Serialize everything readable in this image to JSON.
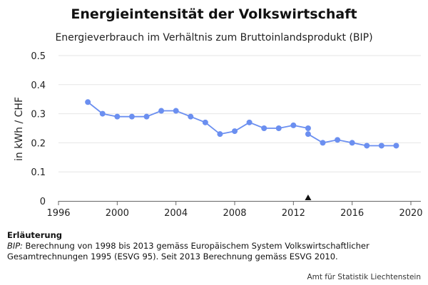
{
  "chart_data": {
    "type": "line",
    "title": "Energieintensität der Volkswirtschaft",
    "subtitle": "Energieverbrauch im Verhältnis zum Bruttoinlandsprodukt (BIP)",
    "ylabel": "in kWh / CHF",
    "xlim": [
      1996,
      2020
    ],
    "ylim": [
      0,
      0.5
    ],
    "x_ticks": [
      1996,
      2000,
      2004,
      2008,
      2012,
      2016,
      2020
    ],
    "y_ticks": [
      0,
      0.1,
      0.2,
      0.3,
      0.4,
      0.5
    ],
    "x_tick_labels": [
      "1996",
      "2000",
      "2004",
      "2008",
      "2012",
      "2016",
      "2020"
    ],
    "y_tick_labels": [
      "0",
      "0.1",
      "0.2",
      "0.3",
      "0.4",
      "0.5"
    ],
    "grid": "horizontal",
    "marker_year": 2013,
    "series": [
      {
        "color": "#6b8ff0",
        "x": [
          1998,
          1999,
          2000,
          2001,
          2002,
          2003,
          2004,
          2005,
          2006,
          2007,
          2008,
          2009,
          2010,
          2011,
          2012,
          2013
        ],
        "y": [
          0.34,
          0.3,
          0.29,
          0.29,
          0.29,
          0.31,
          0.31,
          0.29,
          0.27,
          0.23,
          0.24,
          0.27,
          0.25,
          0.25,
          0.26,
          0.25
        ]
      },
      {
        "color": "#6b8ff0",
        "x": [
          2013,
          2014,
          2015,
          2016,
          2017,
          2018,
          2019
        ],
        "y": [
          0.23,
          0.2,
          0.21,
          0.2,
          0.19,
          0.19,
          0.19
        ]
      }
    ]
  },
  "notes": {
    "heading": "Erläuterung",
    "term": "BIP:",
    "text": " Berechnung von 1998 bis 2013 gemäss Europäischem System Volkswirtschaftlicher Gesamtrechnungen 1995 (ESVG 95). Seit 2013 Berechnung gemäss ESVG 2010."
  },
  "source": "Amt für Statistik Liechtenstein"
}
